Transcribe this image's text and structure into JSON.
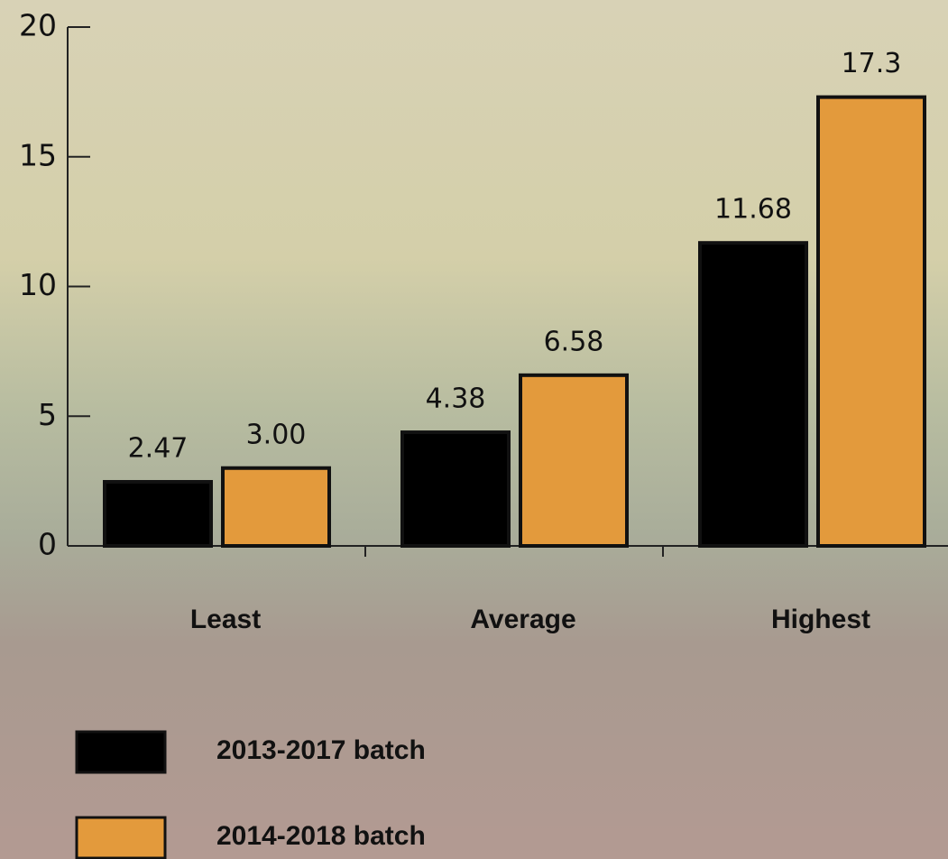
{
  "chart_data": {
    "type": "bar",
    "categories": [
      "Least",
      "Average",
      "Highest"
    ],
    "series": [
      {
        "name": "2013-2017 batch",
        "color": "#000000",
        "values": [
          2.47,
          4.38,
          11.68
        ]
      },
      {
        "name": "2014-2018 batch",
        "color": "#e39a3c",
        "values": [
          3.0,
          6.58,
          17.3
        ],
        "value_labels": [
          "3.00",
          "6.58",
          "17.3"
        ]
      }
    ],
    "ylim": [
      0,
      20
    ],
    "yticks": [
      0,
      5,
      10,
      15,
      20
    ]
  }
}
